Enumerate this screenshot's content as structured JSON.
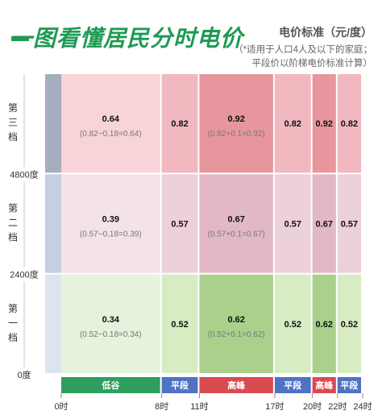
{
  "header": {
    "title": "一图看懂居民分时电价",
    "unit": "电价标准（元/度）",
    "note_lines": [
      "（*适用于人口4人及以下的家庭；",
      "平段价以阶梯电价标准计算）"
    ]
  },
  "chart_data": {
    "type": "heatmap",
    "title": "一图看懂居民分时电价",
    "ylabel": "",
    "xlabel": "",
    "x_ticks": [
      "0时",
      "8时",
      "11时",
      "17时",
      "20时",
      "22时",
      "24时"
    ],
    "x_hours": [
      0,
      8,
      11,
      17,
      20,
      22,
      24
    ],
    "y_ticks": [
      "0度",
      "2400度",
      "4800度"
    ],
    "y_kwh": [
      0,
      2400,
      4800
    ],
    "tiers": [
      {
        "label": "第一档",
        "chars": [
          "第",
          "一",
          "档"
        ]
      },
      {
        "label": "第二档",
        "chars": [
          "第",
          "二",
          "档"
        ]
      },
      {
        "label": "第三档",
        "chars": [
          "第",
          "三",
          "档"
        ]
      }
    ],
    "periods": [
      {
        "label": "低谷",
        "start": 0,
        "end": 8,
        "type": "valley"
      },
      {
        "label": "平段",
        "start": 8,
        "end": 11,
        "type": "flat"
      },
      {
        "label": "高峰",
        "start": 11,
        "end": 17,
        "type": "peak"
      },
      {
        "label": "平段",
        "start": 17,
        "end": 20,
        "type": "flat"
      },
      {
        "label": "高峰",
        "start": 20,
        "end": 22,
        "type": "peak"
      },
      {
        "label": "平段",
        "start": 22,
        "end": 24,
        "type": "flat"
      }
    ],
    "values": [
      [
        0.34,
        0.52,
        0.62,
        0.52,
        0.62,
        0.52
      ],
      [
        0.39,
        0.57,
        0.67,
        0.57,
        0.67,
        0.57
      ],
      [
        0.64,
        0.82,
        0.92,
        0.82,
        0.92,
        0.82
      ]
    ],
    "formulas": [
      {
        "period": 0,
        "text": [
          "(0.52−0.18=0.34)",
          "(0.57−0.18=0.39)",
          "(0.82−0.18=0.64)"
        ]
      },
      {
        "period": 2,
        "text": [
          "(0.52+0.1=0.62)",
          "(0.57+0.1=0.67)",
          "(0.82+0.1=0.92)"
        ]
      }
    ],
    "colors": {
      "tier_fill": {
        "flat": [
          "#d8ecc4",
          "#ecd0dc",
          "#f1b8bf"
        ],
        "valley": [
          "#e6f2dc",
          "#f4e2ea",
          "#f7d4d7"
        ],
        "peak": [
          "#a9d18c",
          "#e2b8c8",
          "#e8969e"
        ]
      },
      "period_label": {
        "valley": "#2e9e5e",
        "flat": "#4f72c4",
        "peak": "#d94a52"
      },
      "side_bar": [
        "#dde4f0",
        "#c4cfe2",
        "#a4aebe"
      ],
      "axis_text": "#333333"
    }
  }
}
